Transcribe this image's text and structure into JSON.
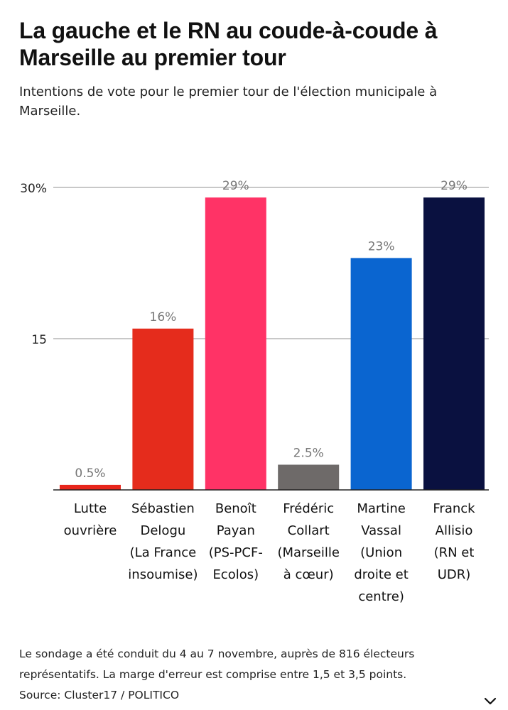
{
  "page": {
    "title": "La gauche et le RN au coude-à-coude à Marseille au premier tour",
    "subtitle": "Intentions de vote pour le premier tour de l'élection municipale à Marseille.",
    "note_line1": "Le sondage a été conduit du 4 au 7 novembre, auprès de 816 électeurs",
    "note_line2": "représentatifs. La marge d'erreur est comprise entre 1,5 et 3,5 points.",
    "source": "Source: Cluster17 / POLITICO",
    "expand_icon": "chevron-down-icon"
  },
  "chart_data": {
    "type": "bar",
    "title": "La gauche et le RN au coude-à-coude à Marseille au premier tour",
    "subtitle": "Intentions de vote pour le premier tour de l'élection municipale à Marseille.",
    "xlabel": "",
    "ylabel": "",
    "ylim": [
      0,
      30
    ],
    "yticks": [
      {
        "value": 0,
        "label": ""
      },
      {
        "value": 15,
        "label": "15"
      },
      {
        "value": 30,
        "label": "30%"
      }
    ],
    "grid": true,
    "categories": [
      [
        "Lutte",
        "ouvrière"
      ],
      [
        "Sébastien",
        "Delogu",
        "(La France",
        "insoumise)"
      ],
      [
        "Benoît",
        "Payan",
        "(PS-PCF-",
        "Ecolos)"
      ],
      [
        "Frédéric",
        "Collart",
        "(Marseille",
        "à cœur)"
      ],
      [
        "Martine",
        "Vassal",
        "(Union",
        "droite et",
        "centre)"
      ],
      [
        "Franck",
        "Allisio",
        "(RN et",
        "UDR)"
      ]
    ],
    "values": [
      0.5,
      16,
      29,
      2.5,
      23,
      29
    ],
    "data_labels": [
      "0.5%",
      "16%",
      "29%",
      "2.5%",
      "23%",
      "29%"
    ],
    "colors": [
      "#e8261c",
      "#e52c1c",
      "#ff3366",
      "#6e6a69",
      "#0a65d0",
      "#0a1140"
    ]
  }
}
